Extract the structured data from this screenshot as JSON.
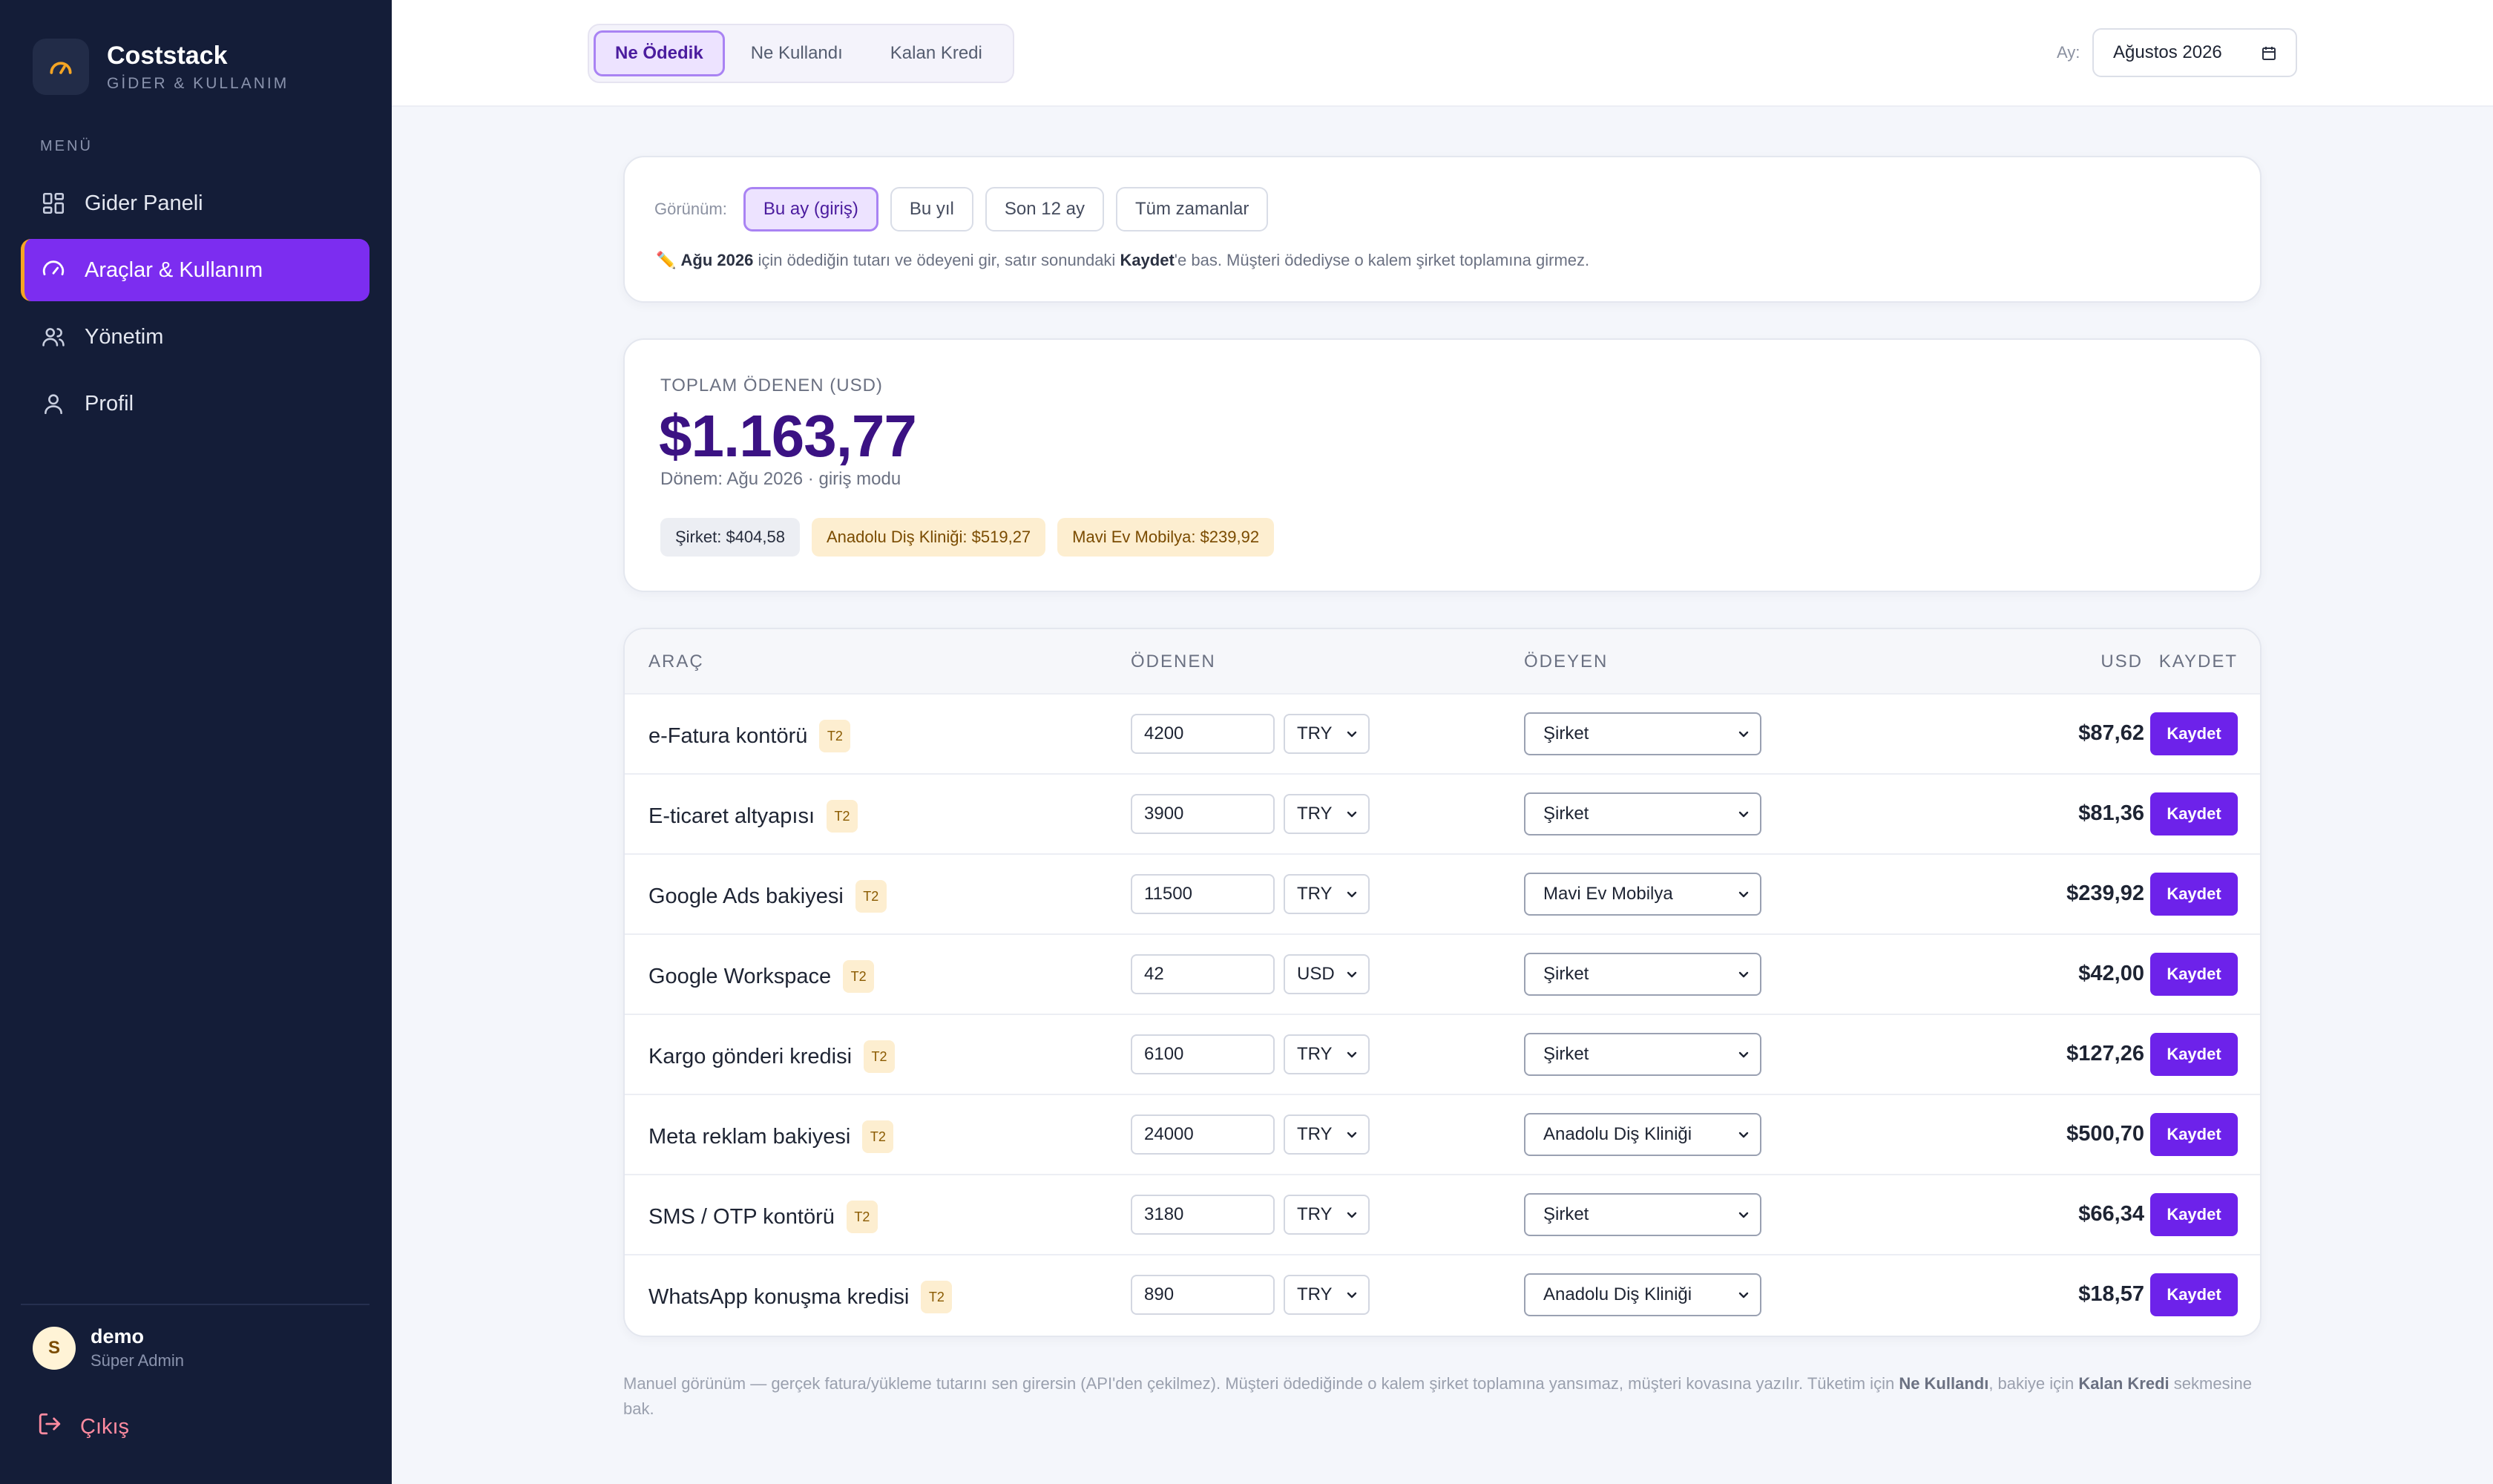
{
  "brand": {
    "name": "Coststack",
    "subtitle": "GİDER & KULLANIM"
  },
  "sidebar": {
    "menu_label": "MENÜ",
    "items": [
      {
        "label": "Gider Paneli",
        "icon": "dashboard-icon",
        "active": false
      },
      {
        "label": "Araçlar & Kullanım",
        "icon": "gauge-icon",
        "active": true
      },
      {
        "label": "Yönetim",
        "icon": "users-icon",
        "active": false
      },
      {
        "label": "Profil",
        "icon": "user-icon",
        "active": false
      }
    ],
    "user": {
      "initial": "S",
      "name": "demo",
      "role": "Süper Admin"
    },
    "logout_label": "Çıkış"
  },
  "topbar": {
    "tabs": [
      {
        "label": "Ne Ödedik",
        "active": true
      },
      {
        "label": "Ne Kullandı",
        "active": false
      },
      {
        "label": "Kalan Kredi",
        "active": false
      }
    ],
    "month_label": "Ay:",
    "month_value": "Ağustos 2026"
  },
  "view": {
    "label": "Görünüm:",
    "options": [
      {
        "label": "Bu ay (giriş)",
        "active": true
      },
      {
        "label": "Bu yıl",
        "active": false
      },
      {
        "label": "Son 12 ay",
        "active": false
      },
      {
        "label": "Tüm zamanlar",
        "active": false
      }
    ],
    "hint_icon": "✏️",
    "hint_period": "Ağu 2026",
    "hint_a": " için ödediğin tutarı ve ödeyeni gir, satır sonundaki ",
    "hint_save": "Kaydet",
    "hint_b": "'e bas. Müşteri ödediyse o kalem şirket toplamına girmez."
  },
  "total": {
    "label": "TOPLAM ÖDENEN (USD)",
    "value": "$1.163,77",
    "sub": "Dönem: Ağu 2026 · giriş modu",
    "chips": [
      {
        "label": "Şirket: $404,58",
        "tone": "neutral"
      },
      {
        "label": "Anadolu Diş Kliniği: $519,27",
        "tone": "warm"
      },
      {
        "label": "Mavi Ev Mobilya: $239,92",
        "tone": "warm"
      }
    ]
  },
  "table": {
    "headers": {
      "tool": "ARAÇ",
      "paid": "ÖDENEN",
      "payer": "ÖDEYEN",
      "usd": "USD",
      "save": "KAYDET"
    },
    "save_label": "Kaydet",
    "rows": [
      {
        "name": "e-Fatura kontörü",
        "tier": "T2",
        "amount": "4200",
        "currency": "TRY",
        "payer": "Şirket",
        "usd": "$87,62"
      },
      {
        "name": "E-ticaret altyapısı",
        "tier": "T2",
        "amount": "3900",
        "currency": "TRY",
        "payer": "Şirket",
        "usd": "$81,36"
      },
      {
        "name": "Google Ads bakiyesi",
        "tier": "T2",
        "amount": "11500",
        "currency": "TRY",
        "payer": "Mavi Ev Mobilya",
        "usd": "$239,92"
      },
      {
        "name": "Google Workspace",
        "tier": "T2",
        "amount": "42",
        "currency": "USD",
        "payer": "Şirket",
        "usd": "$42,00"
      },
      {
        "name": "Kargo gönderi kredisi",
        "tier": "T2",
        "amount": "6100",
        "currency": "TRY",
        "payer": "Şirket",
        "usd": "$127,26"
      },
      {
        "name": "Meta reklam bakiyesi",
        "tier": "T2",
        "amount": "24000",
        "currency": "TRY",
        "payer": "Anadolu Diş Kliniği",
        "usd": "$500,70"
      },
      {
        "name": "SMS / OTP kontörü",
        "tier": "T2",
        "amount": "3180",
        "currency": "TRY",
        "payer": "Şirket",
        "usd": "$66,34"
      },
      {
        "name": "WhatsApp konuşma kredisi",
        "tier": "T2",
        "amount": "890",
        "currency": "TRY",
        "payer": "Anadolu Diş Kliniği",
        "usd": "$18,57"
      }
    ]
  },
  "footnote": {
    "a": "Manuel görünüm — gerçek fatura/yükleme tutarını sen girersin (API'den çekilmez). Müşteri ödediğinde o kalem şirket toplamına yansımaz, müşteri kovasına yazılır. Tüketim için ",
    "usage": "Ne Kullandı",
    "b": ", bakiye için ",
    "credit": "Kalan Kredi",
    "c": " sekmesine bak."
  },
  "colors": {
    "sidebar_bg": "#141d38",
    "accent": "#7c2df0",
    "button": "#6d22ea",
    "total": "#3b1283",
    "warm_chip": "#fdeed0"
  }
}
